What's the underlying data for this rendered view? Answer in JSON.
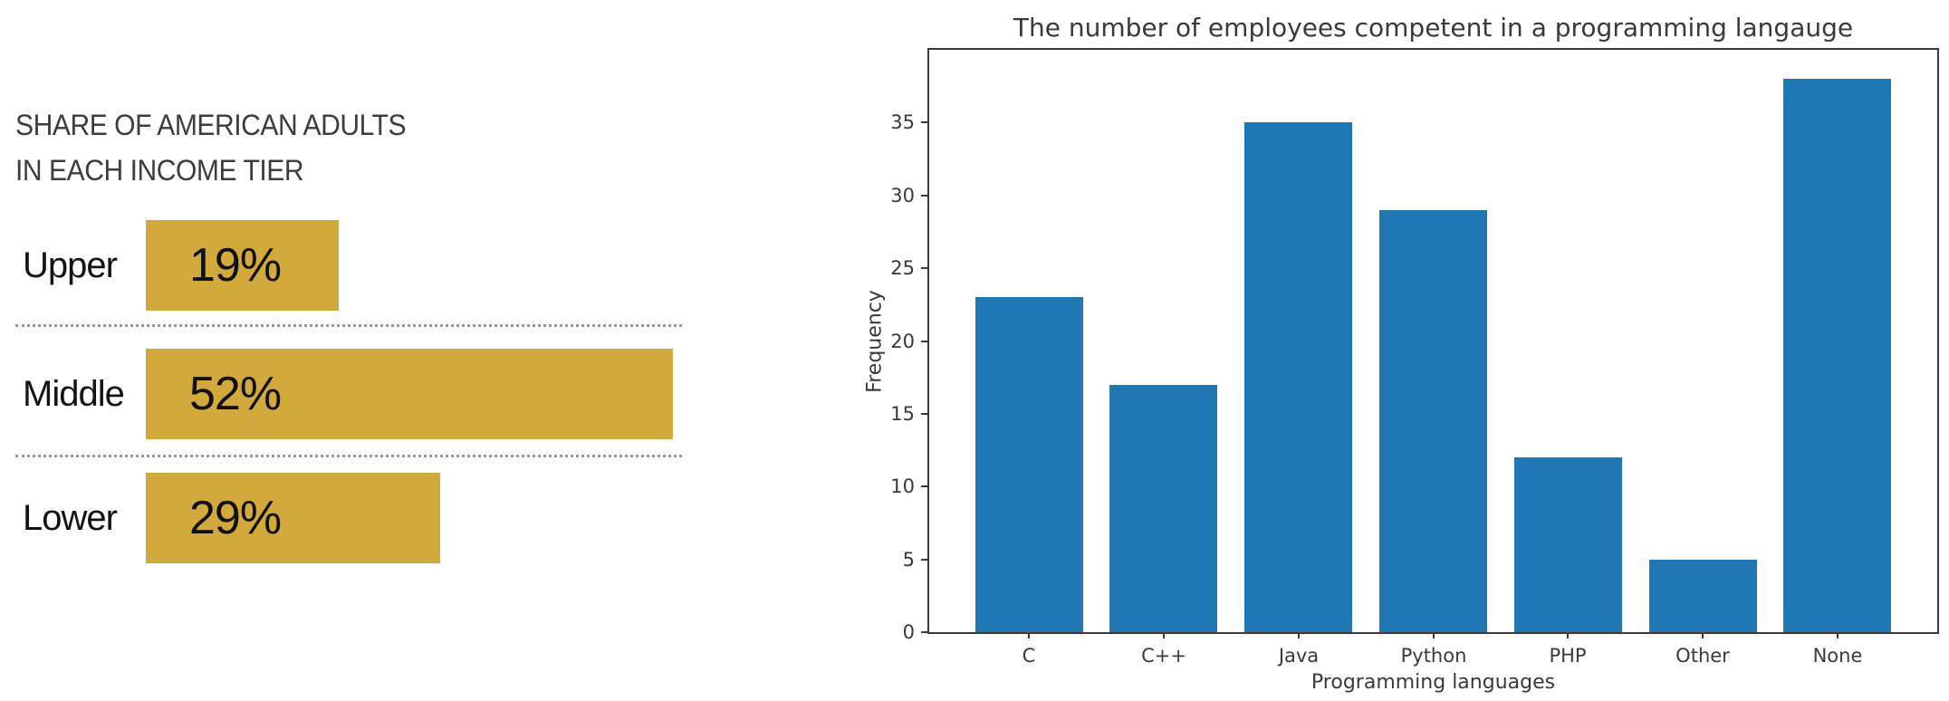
{
  "page": {
    "background": "#ffffff"
  },
  "chart_data": [
    {
      "type": "bar",
      "orientation": "horizontal",
      "title": "SHARE OF AMERICAN ADULTS IN EACH INCOME TIER",
      "title_lines": [
        "SHARE OF AMERICAN ADULTS",
        "IN EACH INCOME TIER"
      ],
      "categories": [
        "Upper",
        "Middle",
        "Lower"
      ],
      "values": [
        19,
        52,
        29
      ],
      "value_labels": [
        "19%",
        "52%",
        "29%"
      ],
      "xlim": [
        0,
        52
      ],
      "bar_color": "#D2A93B",
      "label_color": "#141414",
      "title_color": "#3D3D3D",
      "separator_color": "#9A9A9A",
      "grid": false,
      "legend": "none"
    },
    {
      "type": "bar",
      "orientation": "vertical",
      "title": "The number of employees competent in a programming langauge",
      "categories": [
        "C",
        "C++",
        "Java",
        "Python",
        "PHP",
        "Other",
        "None"
      ],
      "values": [
        23,
        17,
        35,
        29,
        12,
        5,
        38
      ],
      "xlabel": "Programming languages",
      "ylabel": "Frequency",
      "yticks": [
        0,
        5,
        10,
        15,
        20,
        25,
        30,
        35
      ],
      "ylim": [
        0,
        40
      ],
      "bar_color": "#1F77B4",
      "axis_color": "#3B3B3B",
      "text_color": "#3A3A3A",
      "grid": false,
      "legend": "none"
    }
  ]
}
